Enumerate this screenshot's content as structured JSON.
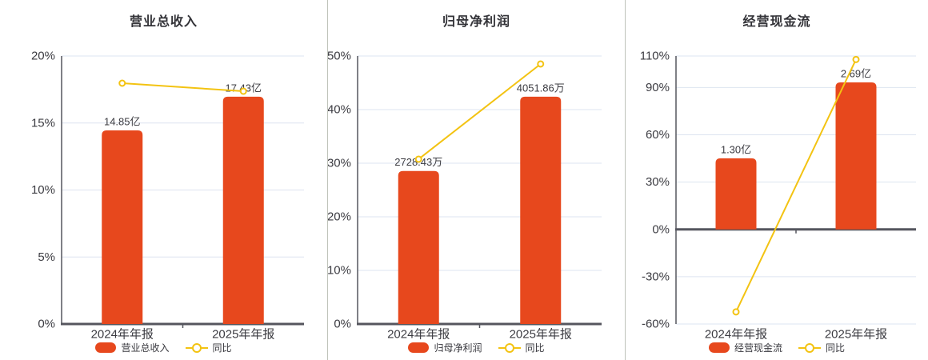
{
  "colors": {
    "bar": "#e7481d",
    "line": "#f3c312",
    "axis": "#55565e",
    "grid": "#dde4f0",
    "text": "#3c3c42",
    "title": "#333338",
    "divider": "#bfc3ba",
    "marker_fill": "#ffffff"
  },
  "chart_data": [
    {
      "type": "bar+line",
      "title": "营业总收入",
      "categories": [
        "2024年年报",
        "2025年年报"
      ],
      "bar_series": {
        "name": "营业总收入",
        "unit": "亿",
        "values": [
          14.85,
          17.43
        ],
        "labels": [
          "14.85亿",
          "17.43亿"
        ]
      },
      "line_series": {
        "name": "同比",
        "unit": "%",
        "values": [
          17.97,
          17.37
        ]
      },
      "y_axis": {
        "min": 0,
        "max": 20,
        "ticks": [
          0,
          5,
          10,
          15,
          20
        ],
        "tick_labels": [
          "0%",
          "5%",
          "10%",
          "15%",
          "20%"
        ]
      },
      "legend": [
        "营业总收入",
        "同比"
      ],
      "grid": true,
      "legend_position": "bottom"
    },
    {
      "type": "bar+line",
      "title": "归母净利润",
      "categories": [
        "2024年年报",
        "2025年年报"
      ],
      "bar_series": {
        "name": "归母净利润",
        "unit": "万",
        "values": [
          2728.43,
          4051.86
        ],
        "labels": [
          "2728.43万",
          "4051.86万"
        ]
      },
      "line_series": {
        "name": "同比",
        "unit": "%",
        "values": [
          30.75,
          48.51
        ]
      },
      "y_axis": {
        "min": 0,
        "max": 50,
        "ticks": [
          0,
          10,
          20,
          30,
          40,
          50
        ],
        "tick_labels": [
          "0%",
          "10%",
          "20%",
          "30%",
          "40%",
          "50%"
        ]
      },
      "legend": [
        "归母净利润",
        "同比"
      ],
      "grid": true,
      "legend_position": "bottom"
    },
    {
      "type": "bar+line",
      "title": "经营现金流",
      "categories": [
        "2024年年报",
        "2025年年报"
      ],
      "bar_series": {
        "name": "经营现金流",
        "unit": "亿",
        "values": [
          1.3,
          2.69
        ],
        "labels": [
          "1.30亿",
          "2.69亿"
        ]
      },
      "line_series": {
        "name": "同比",
        "unit": "%",
        "values": [
          -52.3,
          107.8
        ]
      },
      "y_axis": {
        "min": -60,
        "max": 110,
        "ticks": [
          -60,
          -30,
          0,
          30,
          60,
          90,
          110
        ],
        "tick_labels": [
          "-60%",
          "-30%",
          "0%",
          "30%",
          "60%",
          "90%",
          "110%"
        ]
      },
      "legend": [
        "经营现金流",
        "同比"
      ],
      "grid": true,
      "legend_position": "bottom"
    }
  ]
}
